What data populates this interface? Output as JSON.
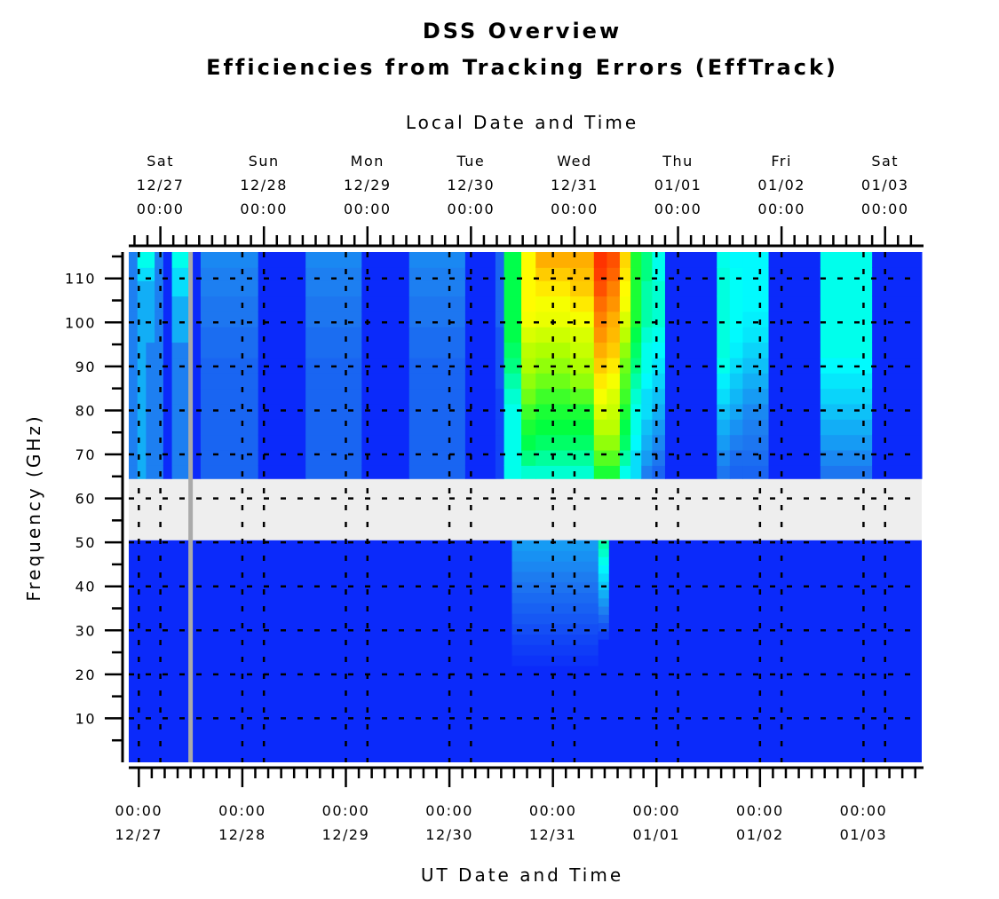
{
  "chart_data": {
    "type": "heatmap",
    "title": "DSS Overview",
    "subtitle": "Efficiencies from Tracking Errors (EffTrack)",
    "xlabel": "UT Date and Time",
    "x2label": "Local Date and Time",
    "ylabel": "Frequency (GHz)",
    "ylim": [
      0,
      116
    ],
    "yticks": [
      10,
      20,
      30,
      40,
      50,
      60,
      70,
      80,
      90,
      100,
      110
    ],
    "xlim": [
      "12/26 21:40",
      "01/03 13:30"
    ],
    "x_start_offset_hours": -2.33,
    "x_end_offset_hours": 181.5,
    "local_offset_hours": 5,
    "grid": true,
    "ut_ticks": [
      {
        "time": "00:00",
        "date": "12/27",
        "offset_hours": 0
      },
      {
        "time": "00:00",
        "date": "12/28",
        "offset_hours": 24
      },
      {
        "time": "00:00",
        "date": "12/29",
        "offset_hours": 48
      },
      {
        "time": "00:00",
        "date": "12/30",
        "offset_hours": 72
      },
      {
        "time": "00:00",
        "date": "12/31",
        "offset_hours": 96
      },
      {
        "time": "00:00",
        "date": "01/01",
        "offset_hours": 120
      },
      {
        "time": "00:00",
        "date": "01/02",
        "offset_hours": 144
      },
      {
        "time": "00:00",
        "date": "01/03",
        "offset_hours": 168
      }
    ],
    "local_ticks": [
      {
        "day": "Sat",
        "date": "12/27",
        "time": "00:00"
      },
      {
        "day": "Sun",
        "date": "12/28",
        "time": "00:00"
      },
      {
        "day": "Mon",
        "date": "12/29",
        "time": "00:00"
      },
      {
        "day": "Tue",
        "date": "12/30",
        "time": "00:00"
      },
      {
        "day": "Wed",
        "date": "12/31",
        "time": "00:00"
      },
      {
        "day": "Thu",
        "date": "01/01",
        "time": "00:00"
      },
      {
        "day": "Fri",
        "date": "01/02",
        "time": "00:00"
      },
      {
        "day": "Sat",
        "date": "01/03",
        "time": "00:00"
      }
    ],
    "no_data_band_ghz": [
      50.5,
      64.5
    ],
    "no_data_color": "#eeeeee",
    "missing_time_line_offset_hours": 12,
    "missing_time_color": "#aaaaaa",
    "colorscale": [
      "#0000ff",
      "#1e78f0",
      "#00ffff",
      "#00ff40",
      "#aaff00",
      "#ffff00",
      "#ffaa00",
      "#ff2000"
    ],
    "freq_edges": [
      64.5,
      67.5,
      71,
      74.5,
      78,
      81.5,
      85,
      88.5,
      92,
      95.5,
      99,
      102.5,
      106,
      109.5,
      112.5,
      116
    ],
    "columns": [
      {
        "t0": -2.33,
        "t1": -0.33,
        "v": [
          0.15,
          0.15,
          0.15,
          0.15,
          0.15,
          0.15,
          0.15,
          0.15,
          0.15,
          0.15,
          0.15,
          0.15,
          0.15,
          0.15,
          0.15
        ]
      },
      {
        "t0": -0.33,
        "t1": 1.67,
        "v": [
          0.2,
          0.2,
          0.2,
          0.2,
          0.2,
          0.2,
          0.2,
          0.2,
          0.2,
          0.2,
          0.2,
          0.2,
          0.2,
          0.25,
          0.3
        ]
      },
      {
        "t0": 1.67,
        "t1": 3.67,
        "v": [
          0.15,
          0.15,
          0.15,
          0.15,
          0.15,
          0.15,
          0.15,
          0.15,
          0.15,
          0.2,
          0.2,
          0.2,
          0.2,
          0.25,
          0.3
        ]
      },
      {
        "t0": 3.67,
        "t1": 5.67,
        "v": [
          0.15,
          0.15,
          0.15,
          0.15,
          0.15,
          0.15,
          0.15,
          0.15,
          0.15,
          0.15,
          0.15,
          0.15,
          0.15,
          0.15,
          0.15
        ]
      },
      {
        "t0": 5.67,
        "t1": 7.67,
        "v": [
          0.05,
          0.05,
          0.05,
          0.05,
          0.05,
          0.05,
          0.05,
          0.05,
          0.05,
          0.05,
          0.05,
          0.05,
          0.05,
          0.05,
          0.05
        ]
      },
      {
        "t0": 7.67,
        "t1": 12.33,
        "v": [
          0.15,
          0.15,
          0.15,
          0.15,
          0.15,
          0.15,
          0.15,
          0.15,
          0.15,
          0.2,
          0.2,
          0.2,
          0.25,
          0.25,
          0.3
        ]
      },
      {
        "t0": 12.33,
        "t1": 14.33,
        "v": [
          0.05,
          0.05,
          0.05,
          0.05,
          0.05,
          0.05,
          0.05,
          0.05,
          0.05,
          0.05,
          0.05,
          0.05,
          0.05,
          0.05,
          0.05
        ]
      },
      {
        "t0": 14.33,
        "t1": 27.67,
        "v": [
          0.12,
          0.12,
          0.12,
          0.12,
          0.12,
          0.12,
          0.12,
          0.12,
          0.13,
          0.13,
          0.14,
          0.14,
          0.15,
          0.15,
          0.16
        ]
      },
      {
        "t0": 27.67,
        "t1": 38.67,
        "v": [
          0.05,
          0.05,
          0.05,
          0.05,
          0.05,
          0.05,
          0.05,
          0.05,
          0.05,
          0.05,
          0.05,
          0.05,
          0.05,
          0.05,
          0.05
        ]
      },
      {
        "t0": 38.67,
        "t1": 51.67,
        "v": [
          0.12,
          0.12,
          0.12,
          0.12,
          0.12,
          0.12,
          0.12,
          0.12,
          0.13,
          0.13,
          0.14,
          0.14,
          0.15,
          0.15,
          0.16
        ]
      },
      {
        "t0": 51.67,
        "t1": 62.67,
        "v": [
          0.05,
          0.05,
          0.05,
          0.05,
          0.05,
          0.05,
          0.05,
          0.05,
          0.05,
          0.05,
          0.05,
          0.05,
          0.05,
          0.05,
          0.05
        ]
      },
      {
        "t0": 62.67,
        "t1": 75.67,
        "v": [
          0.12,
          0.12,
          0.12,
          0.12,
          0.12,
          0.12,
          0.12,
          0.12,
          0.13,
          0.13,
          0.14,
          0.14,
          0.15,
          0.15,
          0.16
        ]
      },
      {
        "t0": 75.67,
        "t1": 82.67,
        "v": [
          0.05,
          0.05,
          0.05,
          0.05,
          0.05,
          0.05,
          0.05,
          0.05,
          0.05,
          0.05,
          0.05,
          0.05,
          0.05,
          0.05,
          0.05
        ]
      },
      {
        "t0": 82.67,
        "t1": 84.67,
        "v": [
          0.08,
          0.08,
          0.08,
          0.08,
          0.08,
          0.08,
          0.1,
          0.1,
          0.1,
          0.1,
          0.12,
          0.12,
          0.12,
          0.12,
          0.12
        ]
      },
      {
        "t0": 84.67,
        "t1": 88.67,
        "v": [
          0.3,
          0.3,
          0.3,
          0.3,
          0.3,
          0.32,
          0.35,
          0.38,
          0.4,
          0.42,
          0.42,
          0.42,
          0.42,
          0.42,
          0.42
        ]
      },
      {
        "t0": 88.67,
        "t1": 92.0,
        "v": [
          0.32,
          0.38,
          0.42,
          0.45,
          0.48,
          0.52,
          0.55,
          0.58,
          0.6,
          0.65,
          0.7,
          0.72,
          0.72,
          0.72,
          0.72
        ]
      },
      {
        "t0": 92.0,
        "t1": 100.0,
        "v": [
          0.32,
          0.36,
          0.4,
          0.43,
          0.45,
          0.48,
          0.52,
          0.55,
          0.58,
          0.63,
          0.68,
          0.7,
          0.75,
          0.8,
          0.85
        ]
      },
      {
        "t0": 100.0,
        "t1": 105.5,
        "v": [
          0.32,
          0.36,
          0.4,
          0.43,
          0.45,
          0.5,
          0.55,
          0.58,
          0.62,
          0.65,
          0.7,
          0.75,
          0.8,
          0.82,
          0.85
        ]
      },
      {
        "t0": 105.5,
        "t1": 108.5,
        "v": [
          0.45,
          0.5,
          0.55,
          0.6,
          0.65,
          0.7,
          0.75,
          0.8,
          0.85,
          0.88,
          0.9,
          0.92,
          0.95,
          0.97,
          0.98
        ]
      },
      {
        "t0": 108.5,
        "t1": 111.5,
        "v": [
          0.45,
          0.5,
          0.55,
          0.6,
          0.62,
          0.65,
          0.7,
          0.75,
          0.8,
          0.83,
          0.85,
          0.88,
          0.9,
          0.93,
          0.95
        ]
      },
      {
        "t0": 111.5,
        "t1": 114.0,
        "v": [
          0.3,
          0.35,
          0.4,
          0.42,
          0.45,
          0.48,
          0.5,
          0.52,
          0.55,
          0.6,
          0.65,
          0.7,
          0.72,
          0.75,
          0.78
        ]
      },
      {
        "t0": 114.0,
        "t1": 116.5,
        "v": [
          0.25,
          0.25,
          0.28,
          0.3,
          0.3,
          0.32,
          0.35,
          0.38,
          0.4,
          0.42,
          0.45,
          0.45,
          0.45,
          0.45,
          0.45
        ]
      },
      {
        "t0": 116.5,
        "t1": 119.0,
        "v": [
          0.15,
          0.18,
          0.2,
          0.22,
          0.25,
          0.25,
          0.28,
          0.3,
          0.3,
          0.32,
          0.35,
          0.35,
          0.35,
          0.38,
          0.38
        ]
      },
      {
        "t0": 119.0,
        "t1": 122.0,
        "v": [
          0.12,
          0.14,
          0.16,
          0.18,
          0.2,
          0.22,
          0.24,
          0.26,
          0.28,
          0.3,
          0.32,
          0.32,
          0.32,
          0.3,
          0.3
        ]
      },
      {
        "t0": 122.0,
        "t1": 134.0,
        "v": [
          0.05,
          0.05,
          0.05,
          0.05,
          0.05,
          0.05,
          0.05,
          0.05,
          0.05,
          0.05,
          0.05,
          0.05,
          0.05,
          0.05,
          0.05
        ]
      },
      {
        "t0": 134.0,
        "t1": 137.0,
        "v": [
          0.14,
          0.16,
          0.18,
          0.2,
          0.22,
          0.25,
          0.27,
          0.3,
          0.31,
          0.31,
          0.31,
          0.31,
          0.31,
          0.31,
          0.3
        ]
      },
      {
        "t0": 137.0,
        "t1": 140.0,
        "v": [
          0.12,
          0.13,
          0.15,
          0.17,
          0.19,
          0.21,
          0.23,
          0.25,
          0.27,
          0.28,
          0.29,
          0.29,
          0.29,
          0.29,
          0.28
        ]
      },
      {
        "t0": 140.0,
        "t1": 146.0,
        "v": [
          0.12,
          0.13,
          0.14,
          0.15,
          0.16,
          0.18,
          0.2,
          0.22,
          0.24,
          0.26,
          0.27,
          0.28,
          0.28,
          0.28,
          0.28
        ]
      },
      {
        "t0": 146.0,
        "t1": 158.0,
        "v": [
          0.05,
          0.05,
          0.05,
          0.05,
          0.05,
          0.05,
          0.05,
          0.05,
          0.05,
          0.05,
          0.05,
          0.05,
          0.05,
          0.05,
          0.05
        ]
      },
      {
        "t0": 158.0,
        "t1": 170.0,
        "v": [
          0.14,
          0.16,
          0.18,
          0.2,
          0.22,
          0.24,
          0.26,
          0.28,
          0.3,
          0.3,
          0.3,
          0.3,
          0.3,
          0.3,
          0.3
        ]
      },
      {
        "t0": 170.0,
        "t1": 181.5,
        "v": [
          0.05,
          0.05,
          0.05,
          0.05,
          0.05,
          0.05,
          0.05,
          0.05,
          0.05,
          0.05,
          0.05,
          0.05,
          0.05,
          0.05,
          0.05
        ]
      }
    ],
    "low_band_base_value": 0.05,
    "low_band_features": [
      {
        "t0": 86.5,
        "t1": 106.5,
        "f0": 22,
        "f1": 50.5,
        "peak": 0.18
      },
      {
        "t0": 106.5,
        "t1": 109.0,
        "f0": 28,
        "f1": 50.5,
        "peak": 0.35
      }
    ]
  }
}
